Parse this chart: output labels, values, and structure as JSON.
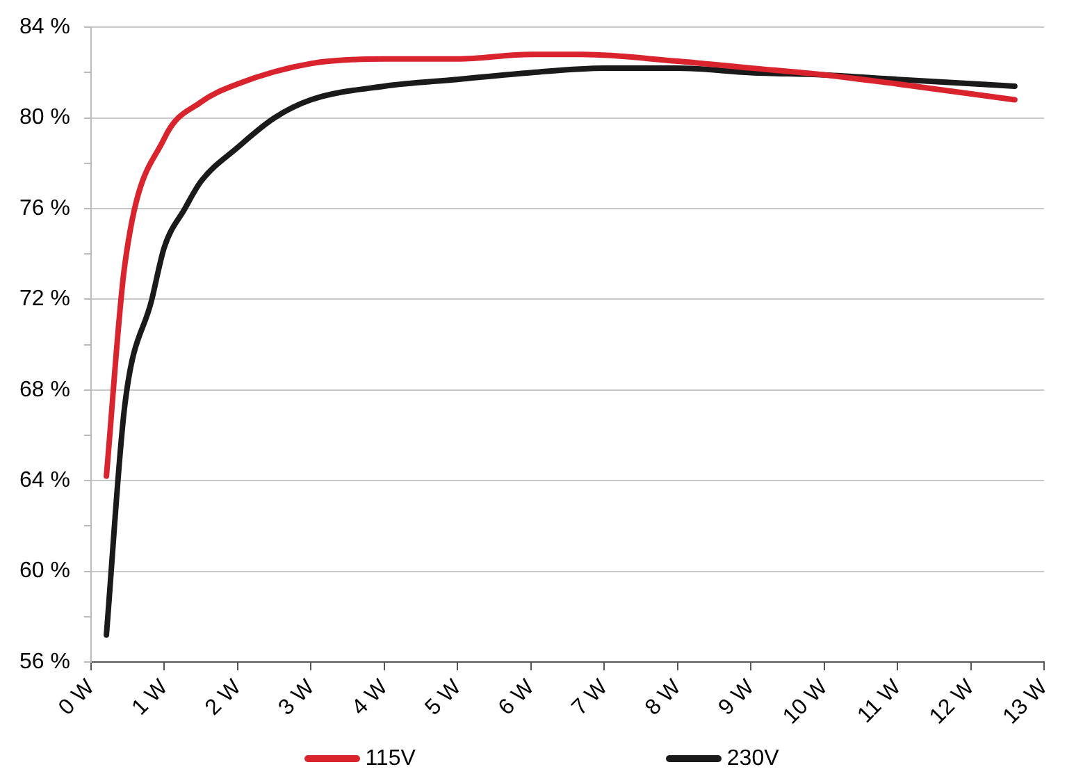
{
  "chart_data": {
    "type": "line",
    "x": [
      0.21,
      0.46,
      1,
      1.5,
      2,
      3,
      4,
      5,
      6,
      6.7,
      8,
      9,
      10,
      11,
      12.6
    ],
    "series": [
      {
        "name": "115V",
        "color": "#d9232d",
        "values": [
          64.2,
          73.5,
          79.1,
          80.7,
          81.5,
          82.4,
          82.6,
          82.6,
          82.8,
          82.8,
          82.5,
          82.2,
          81.9,
          81.5,
          80.8
        ]
      },
      {
        "name": "230V",
        "color": "#1a1a1a",
        "x": [
          0.21,
          0.46,
          0.83,
          1,
          1.28,
          1.5,
          2,
          2.5,
          3,
          4,
          5,
          6,
          7,
          8,
          9,
          10,
          11,
          12.6
        ],
        "values": [
          57.2,
          67.3,
          72,
          74.3,
          76,
          77.2,
          78.7,
          80,
          80.8,
          81.4,
          81.7,
          82,
          82.2,
          82.2,
          82,
          81.9,
          81.7,
          81.4
        ]
      }
    ],
    "xlim": [
      0,
      13
    ],
    "xticks": [
      {
        "value": 0,
        "label": "0 W"
      },
      {
        "value": 1,
        "label": "1 W"
      },
      {
        "value": 2,
        "label": "2 W"
      },
      {
        "value": 3,
        "label": "3 W"
      },
      {
        "value": 4,
        "label": "4 W"
      },
      {
        "value": 5,
        "label": "5 W"
      },
      {
        "value": 6,
        "label": "6 W"
      },
      {
        "value": 7,
        "label": "7 W"
      },
      {
        "value": 8,
        "label": "8 W"
      },
      {
        "value": 9,
        "label": "9 W"
      },
      {
        "value": 10,
        "label": "10 W"
      },
      {
        "value": 11,
        "label": "11 W"
      },
      {
        "value": 12,
        "label": "12 W"
      },
      {
        "value": 13,
        "label": "13 W"
      }
    ],
    "ylim": [
      56,
      84
    ],
    "yticks": [
      {
        "value": 56,
        "label": "56 %"
      },
      {
        "value": 58,
        "label": null
      },
      {
        "value": 60,
        "label": "60 %"
      },
      {
        "value": 62,
        "label": null
      },
      {
        "value": 64,
        "label": "64 %"
      },
      {
        "value": 66,
        "label": null
      },
      {
        "value": 68,
        "label": "68 %"
      },
      {
        "value": 70,
        "label": null
      },
      {
        "value": 72,
        "label": "72 %"
      },
      {
        "value": 74,
        "label": null
      },
      {
        "value": 76,
        "label": "76 %"
      },
      {
        "value": 78,
        "label": null
      },
      {
        "value": 80,
        "label": "80 %"
      },
      {
        "value": 82,
        "label": null
      },
      {
        "value": 84,
        "label": "84 %"
      }
    ],
    "grid": "y",
    "legend": "bottom",
    "marker": "none",
    "line_style": "solid"
  }
}
